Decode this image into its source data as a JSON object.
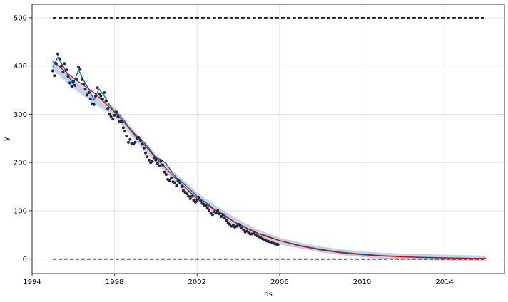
{
  "chart_data": {
    "type": "line",
    "xlabel": "ds",
    "ylabel": "y",
    "xlim": [
      1994.0,
      2016.9
    ],
    "ylim": [
      -30,
      528
    ],
    "grid": true,
    "x_ticks": [
      {
        "value": 1994,
        "label": "1994"
      },
      {
        "value": 1998,
        "label": "1998"
      },
      {
        "value": 2002,
        "label": "2002"
      },
      {
        "value": 2006,
        "label": "2006"
      },
      {
        "value": 2010,
        "label": "2010"
      },
      {
        "value": 2014,
        "label": "2014"
      }
    ],
    "y_ticks": [
      {
        "value": 0,
        "label": "0"
      },
      {
        "value": 100,
        "label": "100"
      },
      {
        "value": 200,
        "label": "200"
      },
      {
        "value": 300,
        "label": "300"
      },
      {
        "value": 400,
        "label": "400"
      },
      {
        "value": 500,
        "label": "500"
      }
    ],
    "cap": {
      "value": 500,
      "x": [
        1995.0,
        2016.0
      ]
    },
    "floor": {
      "value": 0,
      "x": [
        1995.0,
        2016.0
      ]
    },
    "colors": {
      "observed": "#1f2a3a",
      "forecast": "#0072B2",
      "interval": "#b6cbe0",
      "trend": "#dd0000",
      "bounds": "#000000",
      "grid": "#dcdcdc"
    },
    "observed": {
      "x": [
        1995.0,
        1995.08,
        1995.17,
        1995.25,
        1995.33,
        1995.42,
        1995.5,
        1995.58,
        1995.67,
        1995.75,
        1995.83,
        1995.92,
        1996.0,
        1996.08,
        1996.17,
        1996.25,
        1996.33,
        1996.42,
        1996.5,
        1996.58,
        1996.67,
        1996.75,
        1996.83,
        1996.92,
        1997.0,
        1997.08,
        1997.17,
        1997.25,
        1997.33,
        1997.42,
        1997.5,
        1997.58,
        1997.67,
        1997.75,
        1997.83,
        1997.92,
        1998.0,
        1998.08,
        1998.17,
        1998.25,
        1998.33,
        1998.42,
        1998.5,
        1998.58,
        1998.67,
        1998.75,
        1998.83,
        1998.92,
        1999.0,
        1999.08,
        1999.17,
        1999.25,
        1999.33,
        1999.42,
        1999.5,
        1999.58,
        1999.67,
        1999.75,
        1999.83,
        1999.92,
        2000.0,
        2000.08,
        2000.17,
        2000.25,
        2000.33,
        2000.42,
        2000.5,
        2000.58,
        2000.67,
        2000.75,
        2000.83,
        2000.92,
        2001.0,
        2001.08,
        2001.17,
        2001.25,
        2001.33,
        2001.42,
        2001.5,
        2001.58,
        2001.67,
        2001.75,
        2001.83,
        2001.92,
        2002.0,
        2002.08,
        2002.17,
        2002.25,
        2002.33,
        2002.42,
        2002.5,
        2002.58,
        2002.67,
        2002.75,
        2002.83,
        2002.92,
        2003.0,
        2003.08,
        2003.17,
        2003.25,
        2003.33,
        2003.42,
        2003.5,
        2003.58,
        2003.67,
        2003.75,
        2003.83,
        2003.92,
        2004.0,
        2004.08,
        2004.17,
        2004.25,
        2004.33,
        2004.42,
        2004.5,
        2004.58,
        2004.67,
        2004.75,
        2004.83,
        2004.92,
        2005.0,
        2005.08,
        2005.17,
        2005.25,
        2005.33,
        2005.42,
        2005.5,
        2005.58,
        2005.67,
        2005.75,
        2005.83,
        2005.92
      ],
      "y": [
        390,
        380,
        405,
        425,
        415,
        400,
        388,
        405,
        392,
        378,
        365,
        358,
        368,
        360,
        372,
        398,
        394,
        372,
        362,
        352,
        340,
        345,
        332,
        322,
        320,
        338,
        355,
        342,
        338,
        332,
        345,
        328,
        312,
        300,
        295,
        290,
        298,
        305,
        295,
        285,
        285,
        272,
        265,
        255,
        242,
        248,
        240,
        238,
        242,
        250,
        252,
        246,
        238,
        230,
        220,
        212,
        205,
        200,
        202,
        210,
        205,
        198,
        193,
        204,
        195,
        180,
        175,
        165,
        162,
        168,
        160,
        158,
        152,
        162,
        158,
        150,
        142,
        138,
        135,
        130,
        125,
        130,
        122,
        118,
        122,
        128,
        120,
        115,
        112,
        110,
        105,
        100,
        95,
        92,
        98,
        95,
        100,
        94,
        88,
        92,
        85,
        80,
        75,
        72,
        68,
        70,
        66,
        68,
        72,
        70,
        64,
        60,
        56,
        58,
        54,
        52,
        52,
        55,
        50,
        48,
        46,
        44,
        42,
        40,
        38,
        37,
        36,
        34,
        33,
        32,
        31,
        30
      ]
    },
    "forecast": {
      "x": [
        1995.0,
        1995.25,
        1995.5,
        1995.75,
        1996.0,
        1996.25,
        1996.5,
        1996.75,
        1997.0,
        1997.25,
        1997.5,
        1997.75,
        1998.0,
        1998.25,
        1998.5,
        1998.75,
        1999.0,
        1999.25,
        1999.5,
        1999.75,
        2000.0,
        2000.25,
        2000.5,
        2000.75,
        2001.0,
        2001.25,
        2001.5,
        2001.75,
        2002.0,
        2002.25,
        2002.5,
        2002.75,
        2003.0,
        2003.25,
        2003.5,
        2003.75,
        2004.0,
        2004.25,
        2004.5,
        2004.75,
        2005.0,
        2005.25,
        2005.5,
        2005.75,
        2006.0,
        2006.5,
        2007.0,
        2007.5,
        2008.0,
        2008.5,
        2009.0,
        2009.5,
        2010.0,
        2010.5,
        2011.0,
        2011.5,
        2012.0,
        2012.5,
        2013.0,
        2013.5,
        2014.0,
        2014.5,
        2015.0,
        2015.5,
        2016.0
      ],
      "y": [
        398,
        418,
        400,
        380,
        362,
        392,
        370,
        352,
        330,
        352,
        338,
        320,
        305,
        298,
        285,
        268,
        255,
        250,
        238,
        225,
        210,
        206,
        198,
        182,
        168,
        160,
        150,
        140,
        130,
        122,
        115,
        106,
        98,
        94,
        86,
        78,
        72,
        68,
        62,
        58,
        52,
        50,
        46,
        42,
        38,
        33,
        28,
        24,
        20,
        17,
        14,
        12,
        10,
        8.5,
        7,
        6,
        5,
        4.2,
        3.5,
        3,
        2.5,
        2,
        1.6,
        1.3,
        1
      ]
    },
    "interval": {
      "x": [
        1995.0,
        1996.0,
        1997.0,
        1998.0,
        1999.0,
        2000.0,
        2001.0,
        2002.0,
        2003.0,
        2004.0,
        2005.0,
        2006.0,
        2007.0,
        2008.0,
        2009.0,
        2010.0,
        2011.0,
        2012.0,
        2013.0,
        2014.0,
        2015.0,
        2016.0
      ],
      "lower": [
        392,
        354,
        322,
        296,
        246,
        200,
        158,
        120,
        90,
        64,
        44,
        30,
        22,
        14,
        8,
        4,
        1,
        -1,
        -2,
        -3,
        -4,
        -5
      ],
      "upper": [
        410,
        372,
        340,
        314,
        264,
        218,
        176,
        138,
        108,
        82,
        60,
        44,
        34,
        26,
        20,
        16,
        13,
        11,
        10,
        9,
        8,
        7
      ]
    },
    "trend": {
      "x": [
        1995.0,
        1996.0,
        1997.0,
        1998.0,
        1999.0,
        2000.0,
        2001.0,
        2002.0,
        2003.0,
        2004.0,
        2005.0,
        2006.0,
        2007.0,
        2008.0,
        2009.0,
        2010.0,
        2011.0,
        2012.0,
        2013.0,
        2014.0,
        2015.0,
        2016.0
      ],
      "y": [
        410,
        375,
        345,
        305,
        258,
        210,
        165,
        125,
        98,
        72,
        52,
        38,
        27,
        19,
        13,
        9,
        6.5,
        4.5,
        3.2,
        2.3,
        1.7,
        1.2
      ]
    }
  }
}
